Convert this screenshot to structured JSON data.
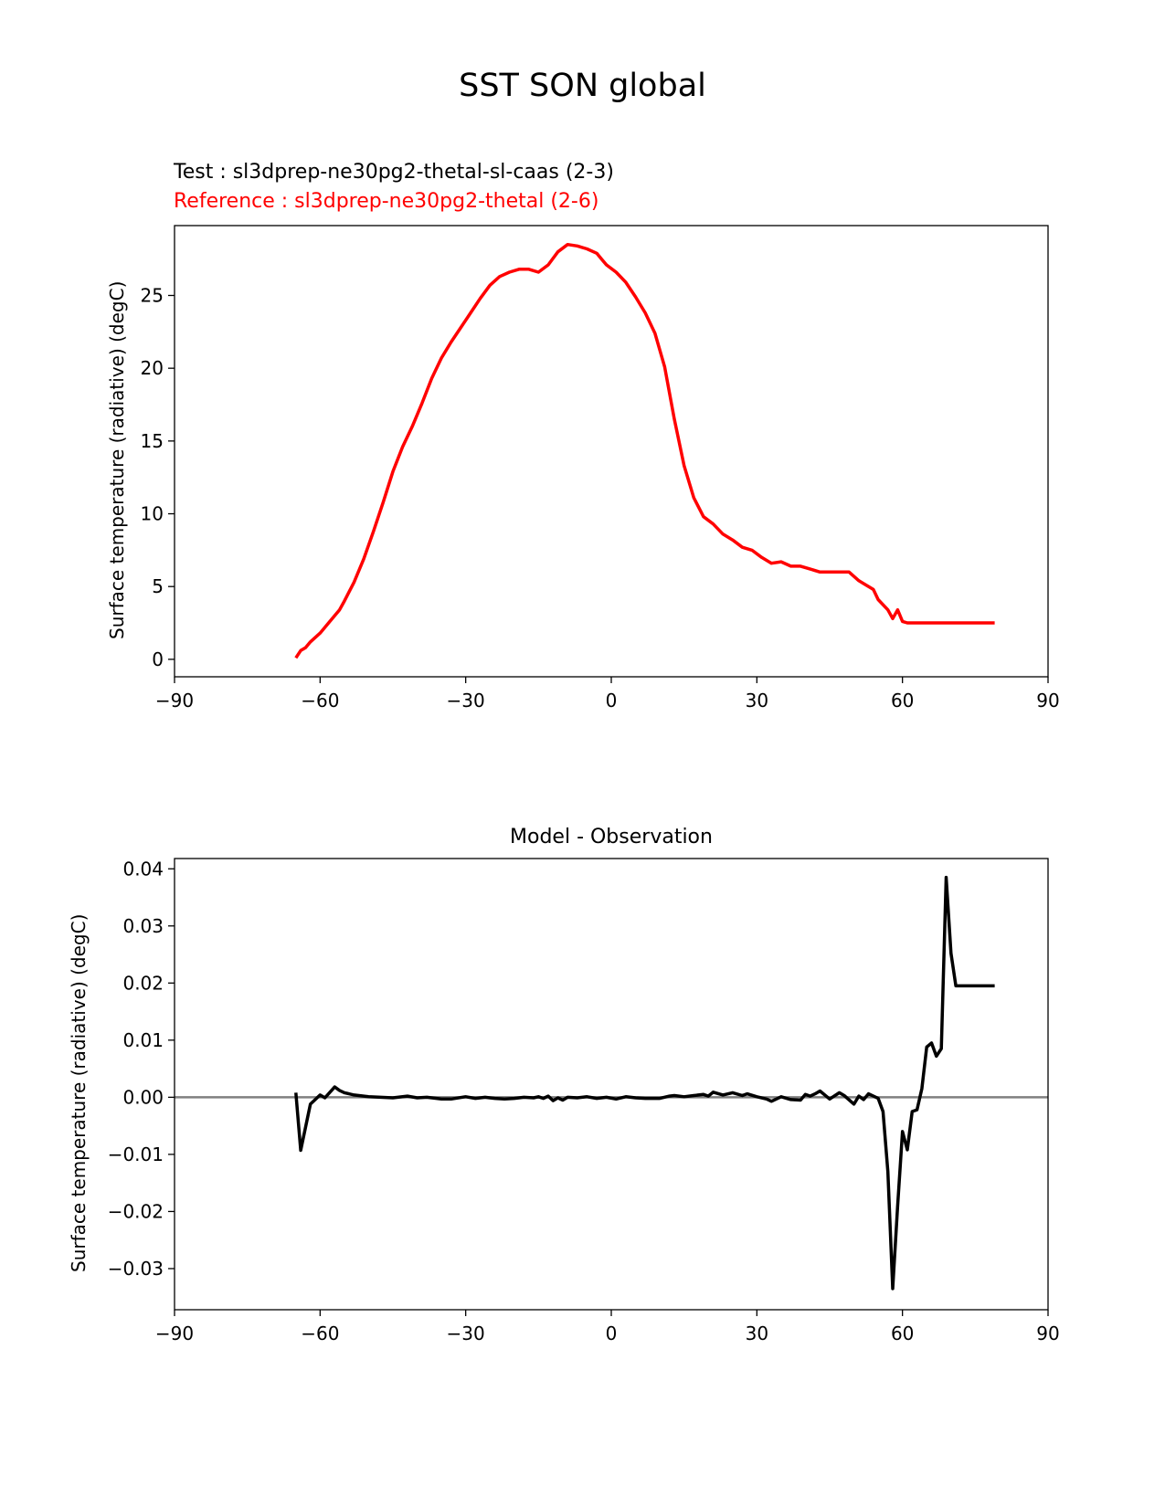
{
  "figure": {
    "suptitle": "SST SON global",
    "test_label": "Test : sl3dprep-ne30pg2-thetal-sl-caas (2-3)",
    "reference_label": "Reference : sl3dprep-ne30pg2-thetal (2-6)",
    "colors": {
      "reference": "#ff0000",
      "difference": "#000000",
      "zero_line": "#808080"
    }
  },
  "chart_data": [
    {
      "type": "line",
      "title": "",
      "xlabel": "",
      "ylabel": "Surface temperature (radiative) (degC)",
      "xlim": [
        -90,
        90
      ],
      "ylim": [
        -1.2,
        29.8
      ],
      "xticks": [
        -90,
        -60,
        -30,
        0,
        30,
        60,
        90
      ],
      "yticks": [
        0,
        5,
        10,
        15,
        20,
        25
      ],
      "series": [
        {
          "name": "Reference : sl3dprep-ne30pg2-thetal (2-6)",
          "color": "#ff0000",
          "x": [
            -65,
            -64,
            -63,
            -62,
            -60,
            -58,
            -56,
            -55,
            -53,
            -51,
            -49,
            -47,
            -45,
            -43,
            -41,
            -39,
            -37,
            -35,
            -33,
            -31,
            -29,
            -27,
            -25,
            -23,
            -21,
            -19,
            -17,
            -15,
            -13,
            -11,
            -9,
            -7,
            -5,
            -3,
            -2,
            -1,
            1,
            3,
            5,
            7,
            9,
            11,
            13,
            15,
            17,
            19,
            21,
            23,
            25,
            27,
            29,
            31,
            33,
            35,
            37,
            39,
            41,
            43,
            45,
            47,
            49,
            51,
            52,
            54,
            55,
            57,
            58,
            59,
            60,
            61,
            62,
            63,
            64,
            65,
            66,
            67,
            68,
            69,
            70,
            71,
            72,
            73,
            74,
            75,
            76,
            77,
            78,
            79
          ],
          "values": [
            0.1,
            0.6,
            0.8,
            1.2,
            1.8,
            2.6,
            3.4,
            4.0,
            5.3,
            6.9,
            8.8,
            10.8,
            12.9,
            14.6,
            16.0,
            17.6,
            19.3,
            20.7,
            21.8,
            22.8,
            23.8,
            24.8,
            25.7,
            26.3,
            26.6,
            26.8,
            26.8,
            26.6,
            27.1,
            28.0,
            28.5,
            28.4,
            28.2,
            27.9,
            27.5,
            27.1,
            26.6,
            25.9,
            24.9,
            23.8,
            22.4,
            20.1,
            16.5,
            13.3,
            11.1,
            9.8,
            9.3,
            8.6,
            8.2,
            7.7,
            7.5,
            7.0,
            6.6,
            6.7,
            6.4,
            6.4,
            6.2,
            6.0,
            6.0,
            6.0,
            6.0,
            5.4,
            5.2,
            4.8,
            4.1,
            3.4,
            2.8,
            3.4,
            2.6,
            2.5,
            2.5,
            2.5,
            2.5,
            2.5,
            2.5,
            2.5,
            2.5,
            2.5,
            2.5,
            2.5,
            2.5,
            2.5,
            2.5,
            2.5,
            2.5,
            2.5,
            2.5,
            2.5
          ]
        }
      ]
    },
    {
      "type": "line",
      "title": "Model - Observation",
      "xlabel": "",
      "ylabel": "Surface temperature (radiative) (degC)",
      "xlim": [
        -90,
        90
      ],
      "ylim": [
        -0.0372,
        0.0418
      ],
      "xticks": [
        -90,
        -60,
        -30,
        0,
        30,
        60,
        90
      ],
      "yticks": [
        -0.03,
        -0.02,
        -0.01,
        0.0,
        0.01,
        0.02,
        0.03,
        0.04
      ],
      "ytick_labels": [
        "−0.03",
        "−0.02",
        "−0.01",
        "0.00",
        "0.01",
        "0.02",
        "0.03",
        "0.04"
      ],
      "zero_line": true,
      "series": [
        {
          "name": "",
          "color": "#000000",
          "x": [
            -65,
            -64,
            -62,
            -60,
            -59,
            -57,
            -56,
            -55,
            -53,
            -50,
            -45,
            -42,
            -40,
            -38,
            -35,
            -33,
            -30,
            -28,
            -26,
            -24,
            -22,
            -20,
            -18,
            -16,
            -15,
            -14,
            -13,
            -12,
            -11,
            -10,
            -9,
            -7,
            -5,
            -3,
            -1,
            1,
            3,
            5,
            7,
            10,
            12,
            13,
            15,
            17,
            19,
            20,
            21,
            23,
            25,
            27,
            28,
            30,
            32,
            33,
            35,
            37,
            39,
            40,
            41,
            42,
            43,
            45,
            47,
            48,
            50,
            51,
            52,
            53,
            54,
            55,
            56,
            57,
            58,
            59,
            60,
            61,
            62,
            63,
            64,
            65,
            66,
            67,
            68,
            69,
            70,
            71,
            72,
            73,
            74,
            75,
            76,
            77,
            78,
            79
          ],
          "values": [
            0.0008,
            -0.0093,
            -0.0012,
            0.0004,
            -0.0001,
            0.0018,
            0.0012,
            0.0008,
            0.0004,
            0.0001,
            -0.0001,
            0.0002,
            -0.0001,
            0.0,
            -0.0003,
            -0.0003,
            0.0001,
            -0.0002,
            0.0,
            -0.0002,
            -0.0003,
            -0.0002,
            0.0,
            -0.0001,
            0.0001,
            -0.0002,
            0.0002,
            -0.0006,
            -0.0001,
            -0.0005,
            0.0,
            -0.0001,
            0.0001,
            -0.0002,
            0.0,
            -0.0003,
            0.0001,
            -0.0001,
            -0.0002,
            -0.0002,
            0.0002,
            0.0003,
            0.0001,
            0.0003,
            0.0005,
            0.0002,
            0.0009,
            0.0004,
            0.0008,
            0.0003,
            0.0006,
            0.0001,
            -0.0003,
            -0.0007,
            0.0001,
            -0.0004,
            -0.0005,
            0.0005,
            0.0002,
            0.0006,
            0.0011,
            -0.0003,
            0.0008,
            0.0003,
            -0.0012,
            0.0002,
            -0.0004,
            0.0006,
            0.0002,
            -0.0002,
            -0.0025,
            -0.013,
            -0.0335,
            -0.019,
            -0.006,
            -0.0092,
            -0.0025,
            -0.0022,
            0.0015,
            0.0088,
            0.0095,
            0.0072,
            0.0085,
            0.0385,
            0.0252,
            0.0195,
            0.0195,
            0.0195,
            0.0195,
            0.0195,
            0.0195,
            0.0195,
            0.0195,
            0.0195
          ]
        }
      ]
    }
  ]
}
